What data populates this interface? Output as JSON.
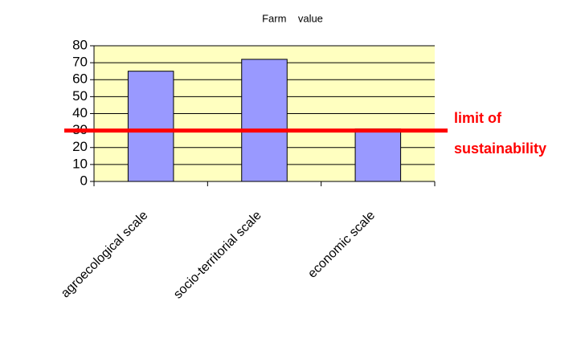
{
  "chart_data": {
    "type": "bar",
    "title": "Farm    value",
    "categories": [
      "agroecological scale",
      "socio-territorial scale",
      "economic scale"
    ],
    "values": [
      65,
      72,
      31
    ],
    "color": "#9999ff",
    "ylim": [
      0,
      80
    ],
    "yticks": [
      0,
      10,
      20,
      30,
      40,
      50,
      60,
      70,
      80
    ],
    "grid": true,
    "annotation": {
      "value": 30,
      "color": "#ff0000",
      "text": [
        "limit of",
        "sustainability"
      ]
    }
  }
}
